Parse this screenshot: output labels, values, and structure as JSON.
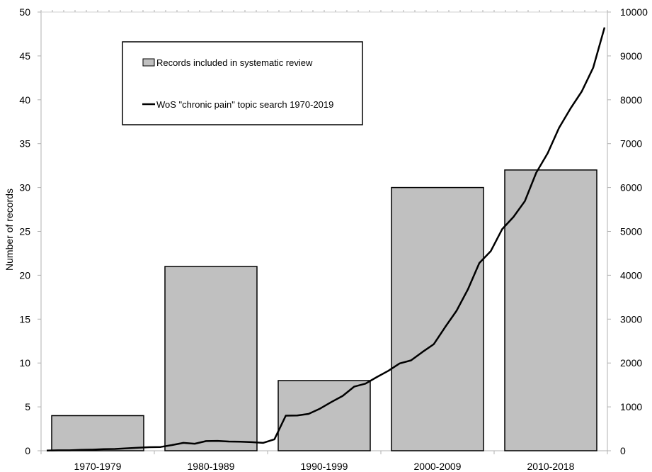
{
  "chart_data": {
    "type": "bar+line",
    "categories": [
      "1970-1979",
      "1980-1989",
      "1990-1999",
      "2000-2009",
      "2010-2018"
    ],
    "series": [
      {
        "name": "Records included in systematic review",
        "type": "bar",
        "axis": "left",
        "color": "#c0c0c0",
        "values": [
          4,
          21,
          8,
          30,
          32
        ]
      },
      {
        "name": "WoS \"chronic pain\" topic search 1970-2019",
        "type": "line",
        "axis": "right",
        "color": "#000000",
        "x": [
          1970,
          1971,
          1972,
          1973,
          1974,
          1975,
          1976,
          1977,
          1978,
          1979,
          1980,
          1981,
          1982,
          1983,
          1984,
          1985,
          1986,
          1987,
          1988,
          1989,
          1990,
          1991,
          1992,
          1993,
          1994,
          1995,
          1996,
          1997,
          1998,
          1999,
          2000,
          2001,
          2002,
          2003,
          2004,
          2005,
          2006,
          2007,
          2008,
          2009,
          2010,
          2011,
          2012,
          2013,
          2014,
          2015,
          2016,
          2017,
          2018,
          2019
        ],
        "values": [
          5,
          10,
          10,
          20,
          25,
          35,
          40,
          55,
          70,
          80,
          85,
          130,
          180,
          160,
          220,
          225,
          210,
          205,
          195,
          180,
          260,
          800,
          805,
          840,
          960,
          1110,
          1250,
          1460,
          1530,
          1680,
          1820,
          1990,
          2060,
          2250,
          2430,
          2820,
          3190,
          3680,
          4280,
          4550,
          5050,
          5330,
          5690,
          6340,
          6780,
          7360,
          7800,
          8190,
          8730,
          9650
        ]
      }
    ],
    "ylabel": "Number of records",
    "y_left": {
      "min": 0,
      "max": 50,
      "ticks": [
        0,
        5,
        10,
        15,
        20,
        25,
        30,
        35,
        40,
        45,
        50
      ]
    },
    "y_right": {
      "min": 0,
      "max": 10000,
      "ticks": [
        0,
        1000,
        2000,
        3000,
        4000,
        5000,
        6000,
        7000,
        8000,
        9000,
        10000
      ]
    },
    "grid": false,
    "legend_position": "top-left"
  }
}
